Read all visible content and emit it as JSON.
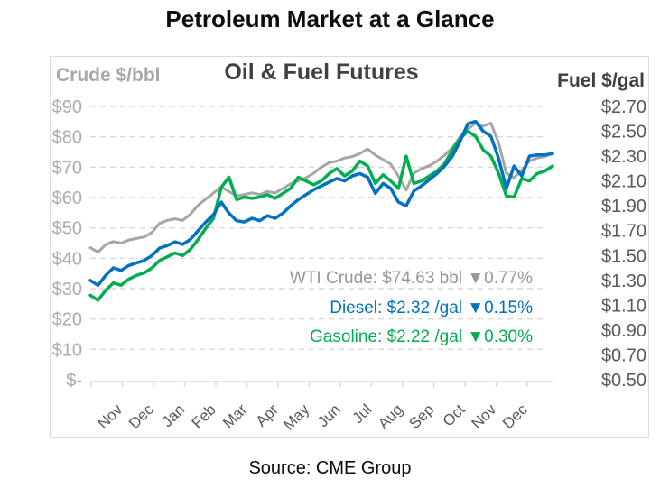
{
  "page": {
    "title": "Petroleum Market at a Glance",
    "source": "Source: CME Group"
  },
  "chart": {
    "title": "Oil & Fuel Futures",
    "left_axis_title": "Crude $/bbl",
    "right_axis_title": "Fuel $/gal"
  },
  "colors": {
    "wti_line": "#a6a6a6",
    "diesel_line": "#0070c0",
    "gasoline_line": "#00ae50",
    "gridline": "#d9d9d9",
    "left_tick_text": "#ababab",
    "right_tick_text": "#595959",
    "month_text": "#595959",
    "legend_wti_text": "#969696"
  },
  "chart_data": {
    "type": "line",
    "title": "Oil & Fuel Futures",
    "grid": "horizontal dashed",
    "legend_position": "inside lower-right",
    "x_months": [
      "Nov",
      "Dec",
      "Jan",
      "Feb",
      "Mar",
      "Apr",
      "May",
      "Jun",
      "Jul",
      "Aug",
      "Sep",
      "Oct",
      "Nov",
      "Dec"
    ],
    "left_axis": {
      "title": "Crude $/bbl",
      "ticks": [
        "$90",
        "$80",
        "$70",
        "$60",
        "$50",
        "$40",
        "$30",
        "$20",
        "$10",
        "$-"
      ],
      "range": [
        0,
        90
      ]
    },
    "right_axis": {
      "title": "Fuel $/gal",
      "ticks": [
        "$2.70",
        "$2.50",
        "$2.30",
        "$2.10",
        "$1.90",
        "$1.70",
        "$1.50",
        "$1.30",
        "$1.10",
        "$0.90",
        "$0.70",
        "$0.50"
      ],
      "range": [
        0.5,
        2.7
      ]
    },
    "series": [
      {
        "name": "WTI Crude",
        "unit": "$/bbl",
        "axis": "left",
        "color": "#a6a6a6",
        "values": [
          43.5,
          42.0,
          44.5,
          45.5,
          45.0,
          46.0,
          46.5,
          47.0,
          48.5,
          51.5,
          52.5,
          53.0,
          52.5,
          54.5,
          57.5,
          59.5,
          61.5,
          63.5,
          62.0,
          60.5,
          61.0,
          61.5,
          61.0,
          62.0,
          61.5,
          63.0,
          64.5,
          65.5,
          66.5,
          68.0,
          70.0,
          71.5,
          72.0,
          73.0,
          73.5,
          74.5,
          76.0,
          74.0,
          72.5,
          71.0,
          67.0,
          62.5,
          68.0,
          69.5,
          70.5,
          72.0,
          74.0,
          76.5,
          80.0,
          82.5,
          84.5,
          83.5,
          84.5,
          78.0,
          68.0,
          66.5,
          69.0,
          72.0,
          73.0,
          73.5,
          74.63
        ]
      },
      {
        "name": "Gasoline",
        "unit": "$/gal",
        "axis": "right",
        "color": "#00ae50",
        "values": [
          1.18,
          1.14,
          1.22,
          1.28,
          1.26,
          1.31,
          1.34,
          1.36,
          1.4,
          1.46,
          1.49,
          1.52,
          1.5,
          1.55,
          1.63,
          1.72,
          1.8,
          2.05,
          2.13,
          1.95,
          1.97,
          1.96,
          1.97,
          1.99,
          1.96,
          2.0,
          2.04,
          2.13,
          2.1,
          2.07,
          2.1,
          2.16,
          2.2,
          2.14,
          2.18,
          2.26,
          2.22,
          2.08,
          2.15,
          2.1,
          2.04,
          2.3,
          2.08,
          2.1,
          2.14,
          2.18,
          2.24,
          2.35,
          2.44,
          2.5,
          2.46,
          2.35,
          2.3,
          2.16,
          1.98,
          1.97,
          2.12,
          2.1,
          2.16,
          2.18,
          2.22
        ]
      },
      {
        "name": "Diesel",
        "unit": "$/gal",
        "axis": "right",
        "color": "#0070c0",
        "values": [
          1.3,
          1.26,
          1.34,
          1.4,
          1.38,
          1.42,
          1.44,
          1.46,
          1.5,
          1.56,
          1.58,
          1.61,
          1.59,
          1.63,
          1.7,
          1.77,
          1.83,
          1.93,
          1.84,
          1.78,
          1.77,
          1.8,
          1.78,
          1.82,
          1.8,
          1.84,
          1.9,
          1.95,
          1.99,
          2.03,
          2.06,
          2.09,
          2.12,
          2.1,
          2.14,
          2.16,
          2.13,
          2.0,
          2.08,
          2.04,
          1.93,
          1.9,
          2.02,
          2.06,
          2.11,
          2.16,
          2.22,
          2.3,
          2.42,
          2.56,
          2.58,
          2.5,
          2.46,
          2.28,
          2.04,
          2.22,
          2.14,
          2.3,
          2.31,
          2.31,
          2.32
        ]
      }
    ],
    "legend": [
      {
        "name": "WTI Crude",
        "text": "WTI Crude: $74.63 bbl  ▼0.77%",
        "color": "#969696"
      },
      {
        "name": "Diesel",
        "text": "Diesel:  $2.32 /gal  ▼0.15%",
        "color": "#0070c0"
      },
      {
        "name": "Gasoline",
        "text": "Gasoline:  $2.22 /gal  ▼0.30%",
        "color": "#00ae50"
      }
    ]
  }
}
